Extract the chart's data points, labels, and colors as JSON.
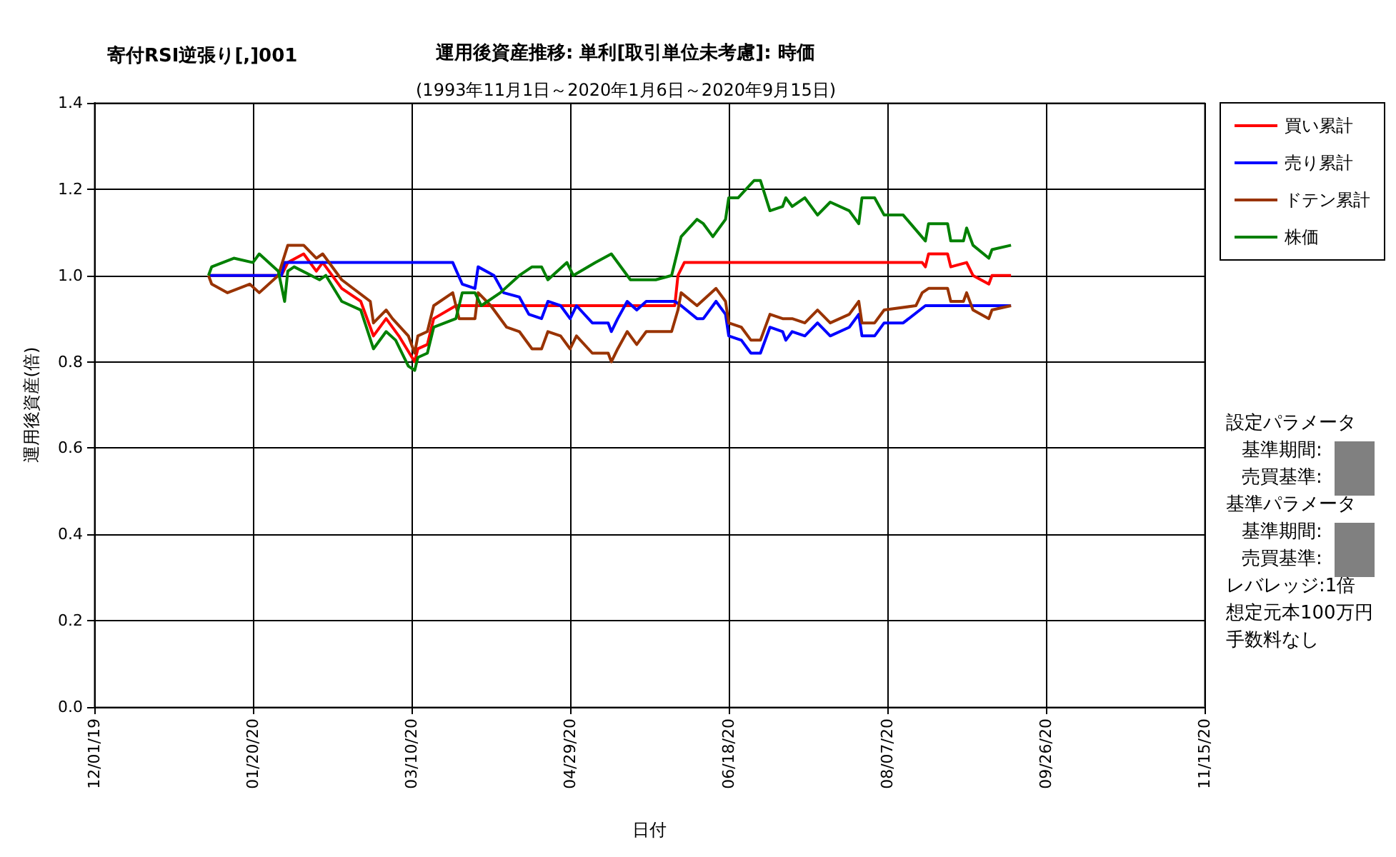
{
  "chart_data": {
    "type": "line",
    "title": "運用後資産推移: 単利[取引単位未考慮]: 時価",
    "subtitle": "(1993年11月1日～2020年1月6日～2020年9月15日)",
    "xlabel": "日付",
    "ylabel": "運用後資産(倍)",
    "annotations": [
      "寄付RSI逆張り[,]001",
      "設定パラメータ",
      "基準期間:",
      "売買基準:",
      "基準パラメータ",
      "基準期間:",
      "売買基準:",
      "レバレッジ:1倍",
      "想定元本100万円",
      "手数料なし"
    ],
    "xlim": [
      "2019-12-01",
      "2020-11-15"
    ],
    "xticks": [
      {
        "value": "2019-12-01",
        "label": "12/01/19"
      },
      {
        "value": "2020-01-20",
        "label": "01/20/20"
      },
      {
        "value": "2020-03-10",
        "label": "03/10/20"
      },
      {
        "value": "2020-04-29",
        "label": "04/29/20"
      },
      {
        "value": "2020-06-18",
        "label": "06/18/20"
      },
      {
        "value": "2020-08-07",
        "label": "08/07/20"
      },
      {
        "value": "2020-09-26",
        "label": "09/26/20"
      },
      {
        "value": "2020-11-15",
        "label": "11/15/20"
      }
    ],
    "ylim": [
      0,
      1.4
    ],
    "yticks": [
      {
        "value": 0,
        "label": "0.0"
      },
      {
        "value": 0.2,
        "label": "0.2"
      },
      {
        "value": 0.4,
        "label": "0.4"
      },
      {
        "value": 0.6,
        "label": "0.6"
      },
      {
        "value": 0.8,
        "label": "0.8"
      },
      {
        "value": 1,
        "label": "1.0"
      },
      {
        "value": 1.2,
        "label": "1.2"
      },
      {
        "value": 1.4,
        "label": "1.4"
      }
    ],
    "grid": true,
    "legend": "right",
    "marker": "none",
    "line_style": "solid",
    "series": [
      {
        "name": "買い累計",
        "color": "#ff0000",
        "x": [
          "2020-01-06",
          "2020-01-29",
          "2020-01-31",
          "2020-02-05",
          "2020-02-09",
          "2020-02-11",
          "2020-02-17",
          "2020-02-23",
          "2020-02-27",
          "2020-03-02",
          "2020-03-06",
          "2020-03-11",
          "2020-03-12",
          "2020-03-15",
          "2020-03-17",
          "2020-03-24",
          "2020-06-01",
          "2020-06-02",
          "2020-06-04",
          "2020-08-18",
          "2020-08-19",
          "2020-08-20",
          "2020-08-26",
          "2020-08-27",
          "2020-09-01",
          "2020-09-03",
          "2020-09-08",
          "2020-09-09",
          "2020-09-15"
        ],
        "values": [
          1.0,
          1.0,
          1.03,
          1.05,
          1.01,
          1.03,
          0.97,
          0.94,
          0.86,
          0.9,
          0.86,
          0.8,
          0.83,
          0.84,
          0.9,
          0.93,
          0.93,
          1.0,
          1.03,
          1.03,
          1.02,
          1.05,
          1.05,
          1.02,
          1.03,
          1.0,
          0.98,
          1.0,
          1.0
        ]
      },
      {
        "name": "売り累計",
        "color": "#0000ff",
        "x": [
          "2020-01-06",
          "2020-01-29",
          "2020-01-30",
          "2020-03-23",
          "2020-03-26",
          "2020-03-30",
          "2020-03-31",
          "2020-04-05",
          "2020-04-08",
          "2020-04-13",
          "2020-04-16",
          "2020-04-20",
          "2020-04-22",
          "2020-04-26",
          "2020-04-29",
          "2020-05-01",
          "2020-05-06",
          "2020-05-11",
          "2020-05-12",
          "2020-05-14",
          "2020-05-17",
          "2020-05-20",
          "2020-05-23",
          "2020-06-01",
          "2020-06-03",
          "2020-06-08",
          "2020-06-10",
          "2020-06-14",
          "2020-06-17",
          "2020-06-18",
          "2020-06-22",
          "2020-06-25",
          "2020-06-28",
          "2020-07-01",
          "2020-07-05",
          "2020-07-06",
          "2020-07-08",
          "2020-07-12",
          "2020-07-16",
          "2020-07-20",
          "2020-07-26",
          "2020-07-29",
          "2020-07-30",
          "2020-08-03",
          "2020-08-06",
          "2020-08-12",
          "2020-08-19",
          "2020-09-15"
        ],
        "values": [
          1.0,
          1.0,
          1.03,
          1.03,
          0.98,
          0.97,
          1.02,
          1.0,
          0.96,
          0.95,
          0.91,
          0.9,
          0.94,
          0.93,
          0.9,
          0.93,
          0.89,
          0.89,
          0.87,
          0.9,
          0.94,
          0.92,
          0.94,
          0.94,
          0.93,
          0.9,
          0.9,
          0.94,
          0.91,
          0.86,
          0.85,
          0.82,
          0.82,
          0.88,
          0.87,
          0.85,
          0.87,
          0.86,
          0.89,
          0.86,
          0.88,
          0.91,
          0.86,
          0.86,
          0.89,
          0.89,
          0.93,
          0.93
        ]
      },
      {
        "name": "ドテン累計",
        "color": "#993300",
        "x": [
          "2020-01-06",
          "2020-01-07",
          "2020-01-12",
          "2020-01-19",
          "2020-01-22",
          "2020-01-28",
          "2020-01-31",
          "2020-02-05",
          "2020-02-09",
          "2020-02-11",
          "2020-02-17",
          "2020-02-26",
          "2020-02-27",
          "2020-03-02",
          "2020-03-04",
          "2020-03-09",
          "2020-03-11",
          "2020-03-12",
          "2020-03-15",
          "2020-03-17",
          "2020-03-23",
          "2020-03-25",
          "2020-03-30",
          "2020-03-31",
          "2020-04-04",
          "2020-04-09",
          "2020-04-13",
          "2020-04-17",
          "2020-04-20",
          "2020-04-22",
          "2020-04-26",
          "2020-04-29",
          "2020-05-01",
          "2020-05-06",
          "2020-05-11",
          "2020-05-12",
          "2020-05-14",
          "2020-05-17",
          "2020-05-20",
          "2020-05-23",
          "2020-05-31",
          "2020-06-02",
          "2020-06-03",
          "2020-06-08",
          "2020-06-14",
          "2020-06-17",
          "2020-06-18",
          "2020-06-22",
          "2020-06-25",
          "2020-06-28",
          "2020-07-01",
          "2020-07-05",
          "2020-07-08",
          "2020-07-12",
          "2020-07-16",
          "2020-07-20",
          "2020-07-26",
          "2020-07-29",
          "2020-07-30",
          "2020-08-03",
          "2020-08-06",
          "2020-08-16",
          "2020-08-18",
          "2020-08-20",
          "2020-08-26",
          "2020-08-27",
          "2020-08-31",
          "2020-09-01",
          "2020-09-03",
          "2020-09-08",
          "2020-09-09",
          "2020-09-15"
        ],
        "values": [
          1.0,
          0.98,
          0.96,
          0.98,
          0.96,
          1.0,
          1.07,
          1.07,
          1.04,
          1.05,
          0.99,
          0.94,
          0.89,
          0.92,
          0.9,
          0.86,
          0.82,
          0.86,
          0.87,
          0.93,
          0.96,
          0.9,
          0.9,
          0.96,
          0.93,
          0.88,
          0.87,
          0.83,
          0.83,
          0.87,
          0.86,
          0.83,
          0.86,
          0.82,
          0.82,
          0.8,
          0.83,
          0.87,
          0.84,
          0.87,
          0.87,
          0.92,
          0.96,
          0.93,
          0.97,
          0.94,
          0.89,
          0.88,
          0.85,
          0.85,
          0.91,
          0.9,
          0.9,
          0.89,
          0.92,
          0.89,
          0.91,
          0.94,
          0.89,
          0.89,
          0.92,
          0.93,
          0.96,
          0.97,
          0.97,
          0.94,
          0.94,
          0.96,
          0.92,
          0.9,
          0.92,
          0.93
        ]
      },
      {
        "name": "株価",
        "color": "#008000",
        "x": [
          "2020-01-06",
          "2020-01-07",
          "2020-01-14",
          "2020-01-20",
          "2020-01-22",
          "2020-01-28",
          "2020-01-30",
          "2020-01-31",
          "2020-02-02",
          "2020-02-10",
          "2020-02-12",
          "2020-02-17",
          "2020-02-23",
          "2020-02-27",
          "2020-03-02",
          "2020-03-05",
          "2020-03-09",
          "2020-03-11",
          "2020-03-12",
          "2020-03-15",
          "2020-03-17",
          "2020-03-24",
          "2020-03-26",
          "2020-03-30",
          "2020-04-01",
          "2020-04-07",
          "2020-04-13",
          "2020-04-17",
          "2020-04-20",
          "2020-04-22",
          "2020-04-28",
          "2020-04-30",
          "2020-05-07",
          "2020-05-12",
          "2020-05-18",
          "2020-05-26",
          "2020-05-31",
          "2020-06-03",
          "2020-06-08",
          "2020-06-10",
          "2020-06-13",
          "2020-06-17",
          "2020-06-18",
          "2020-06-21",
          "2020-06-26",
          "2020-06-28",
          "2020-07-01",
          "2020-07-05",
          "2020-07-06",
          "2020-07-08",
          "2020-07-12",
          "2020-07-16",
          "2020-07-20",
          "2020-07-26",
          "2020-07-29",
          "2020-07-30",
          "2020-08-03",
          "2020-08-06",
          "2020-08-12",
          "2020-08-19",
          "2020-08-20",
          "2020-08-26",
          "2020-08-27",
          "2020-08-31",
          "2020-09-01",
          "2020-09-03",
          "2020-09-08",
          "2020-09-09",
          "2020-09-15"
        ],
        "values": [
          1.0,
          1.02,
          1.04,
          1.03,
          1.05,
          1.01,
          0.94,
          1.01,
          1.02,
          0.99,
          1.0,
          0.94,
          0.92,
          0.83,
          0.87,
          0.85,
          0.79,
          0.78,
          0.81,
          0.82,
          0.88,
          0.9,
          0.96,
          0.96,
          0.93,
          0.96,
          1.0,
          1.02,
          1.02,
          0.99,
          1.03,
          1.0,
          1.03,
          1.05,
          0.99,
          0.99,
          1.0,
          1.09,
          1.13,
          1.12,
          1.09,
          1.13,
          1.18,
          1.18,
          1.22,
          1.22,
          1.15,
          1.16,
          1.18,
          1.16,
          1.18,
          1.14,
          1.17,
          1.15,
          1.12,
          1.18,
          1.18,
          1.14,
          1.14,
          1.08,
          1.12,
          1.12,
          1.08,
          1.08,
          1.11,
          1.07,
          1.04,
          1.06,
          1.07
        ]
      }
    ]
  }
}
